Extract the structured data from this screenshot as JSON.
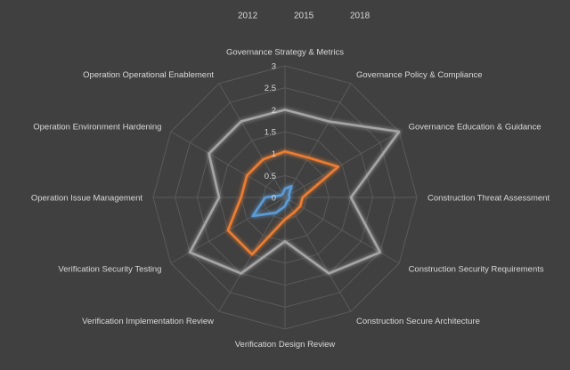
{
  "chart_data": {
    "type": "radar",
    "title": "",
    "categories": [
      "Governance Strategy & Metrics",
      "Governance Policy & Compliance",
      "Governance Education & Guidance",
      "Construction Threat Assessment",
      "Construction Security Requirements",
      "Construction Secure Architecture",
      "Verification Design Review",
      "Verification Implementation Review",
      "Verification Security Testing",
      "Operation Issue Management",
      "Operation Environment Hardening",
      "Operation Operational Enablement"
    ],
    "rlim": [
      0,
      3
    ],
    "ticks": [
      "0",
      "0.5",
      "1",
      "1.5",
      "2",
      "2.5",
      "3"
    ],
    "tick_values": [
      0,
      0.5,
      1,
      1.5,
      2,
      2.5,
      3
    ],
    "grid": true,
    "legend_position": "top",
    "series": [
      {
        "name": "2012",
        "color": "#5b9bd5",
        "values": [
          0.2,
          0.3,
          0.1,
          0.1,
          0.1,
          0.1,
          0.2,
          0.4,
          0.85,
          0.45,
          0.1,
          0.1
        ]
      },
      {
        "name": "2015",
        "color": "#ed7d31",
        "values": [
          1.05,
          1.05,
          1.4,
          0.4,
          0.4,
          0.4,
          0.5,
          1.5,
          1.5,
          1.0,
          1.0,
          1.0
        ]
      },
      {
        "name": "2018",
        "color": "#a5a5a5",
        "values": [
          2.0,
          2.0,
          3.0,
          1.5,
          2.5,
          2.0,
          1.0,
          2.0,
          2.5,
          1.5,
          2.0,
          2.0
        ]
      }
    ]
  }
}
